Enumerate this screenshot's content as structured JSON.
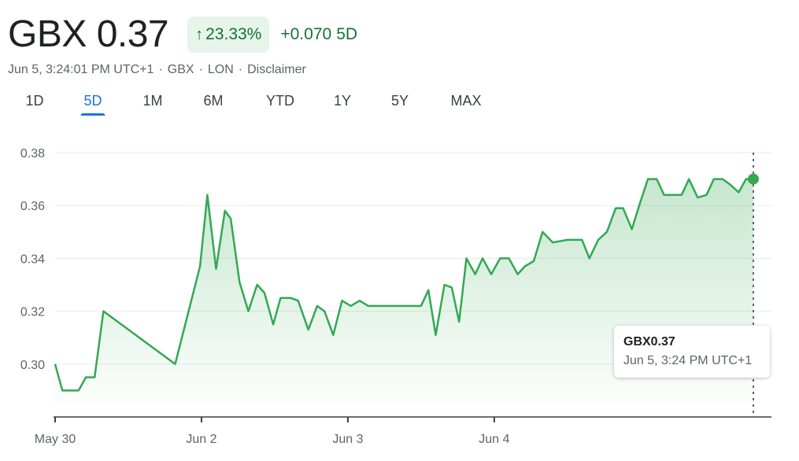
{
  "header": {
    "price": "GBX 0.37",
    "change_percent": "23.33%",
    "change_arrow": "↑",
    "change_abs": "+0.070",
    "change_period": "5D",
    "accent_color": "#137333",
    "badge_bg": "#e6f4ea"
  },
  "meta": {
    "timestamp": "Jun 5, 3:24:01 PM UTC+1",
    "currency": "GBX",
    "exchange": "LON",
    "disclaimer": "Disclaimer"
  },
  "tabs": [
    {
      "label": "1D",
      "active": false
    },
    {
      "label": "5D",
      "active": true
    },
    {
      "label": "1M",
      "active": false
    },
    {
      "label": "6M",
      "active": false
    },
    {
      "label": "YTD",
      "active": false
    },
    {
      "label": "1Y",
      "active": false
    },
    {
      "label": "5Y",
      "active": false
    },
    {
      "label": "MAX",
      "active": false
    }
  ],
  "tooltip": {
    "price": "GBX0.37",
    "time": "Jun 5, 3:24 PM UTC+1"
  },
  "chart_data": {
    "type": "area",
    "line_color": "#34a853",
    "ylim": [
      0.28,
      0.38
    ],
    "y_ticks": [
      0.3,
      0.32,
      0.34,
      0.36,
      0.38
    ],
    "y_tick_labels": [
      "0.30",
      "0.32",
      "0.34",
      "0.36",
      "0.38"
    ],
    "x_tick_labels": [
      "May 30",
      "Jun 2",
      "Jun 3",
      "Jun 4"
    ],
    "x_tick_positions": [
      0,
      1,
      2,
      3
    ],
    "grid": true,
    "x": [
      0.0,
      0.05,
      0.16,
      0.21,
      0.27,
      0.33,
      0.82,
      0.99,
      1.04,
      1.1,
      1.16,
      1.2,
      1.26,
      1.32,
      1.38,
      1.43,
      1.49,
      1.54,
      1.61,
      1.66,
      1.73,
      1.79,
      1.84,
      1.9,
      1.96,
      2.02,
      2.08,
      2.14,
      2.2,
      2.5,
      2.55,
      2.6,
      2.66,
      2.71,
      2.76,
      2.81,
      2.87,
      2.92,
      2.98,
      3.04,
      3.1,
      3.16,
      3.21,
      3.27,
      3.33,
      3.4,
      3.5,
      3.55,
      3.6,
      3.65,
      3.71,
      3.77,
      3.83,
      3.88,
      3.94,
      3.99,
      4.05,
      4.11,
      4.16,
      4.22,
      4.28,
      4.33,
      4.39,
      4.45,
      4.5,
      4.56,
      4.61,
      4.67,
      4.72,
      4.77
    ],
    "values": [
      0.3,
      0.29,
      0.29,
      0.295,
      0.295,
      0.32,
      0.3,
      0.337,
      0.364,
      0.336,
      0.358,
      0.355,
      0.331,
      0.32,
      0.33,
      0.327,
      0.315,
      0.325,
      0.325,
      0.324,
      0.313,
      0.322,
      0.32,
      0.311,
      0.324,
      0.322,
      0.324,
      0.322,
      0.322,
      0.322,
      0.328,
      0.311,
      0.33,
      0.329,
      0.316,
      0.34,
      0.334,
      0.34,
      0.334,
      0.34,
      0.34,
      0.334,
      0.337,
      0.339,
      0.35,
      0.346,
      0.347,
      0.347,
      0.347,
      0.34,
      0.347,
      0.35,
      0.359,
      0.359,
      0.351,
      0.36,
      0.37,
      0.37,
      0.364,
      0.364,
      0.364,
      0.37,
      0.363,
      0.364,
      0.37,
      0.37,
      0.368,
      0.365,
      0.37,
      0.37
    ],
    "xlim": [
      0,
      4.77
    ]
  }
}
